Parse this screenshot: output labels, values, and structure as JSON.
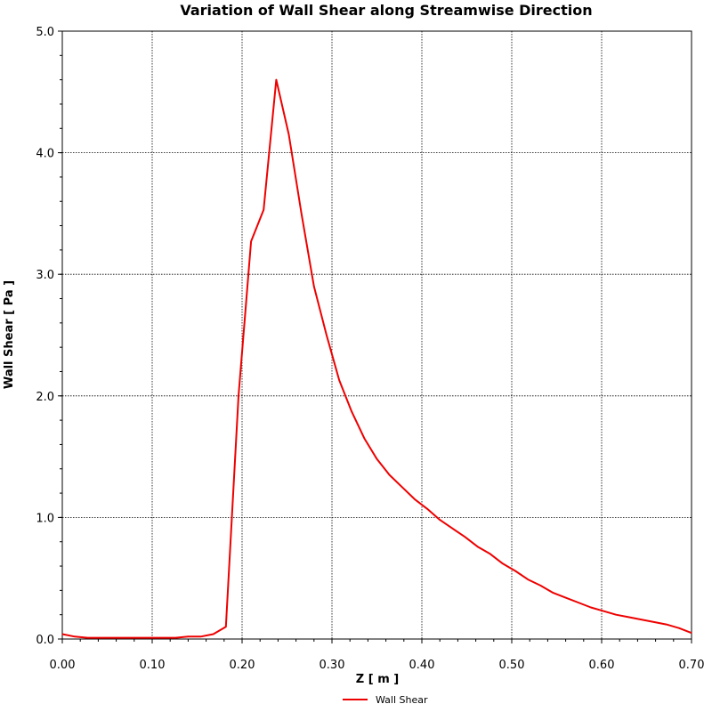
{
  "chart_data": {
    "type": "line",
    "title": "Variation of Wall Shear along Streamwise Direction",
    "xlabel": "Z [ m ]",
    "ylabel": "Wall Shear [ Pa ]",
    "xlim": [
      0,
      0.7
    ],
    "ylim": [
      0,
      5
    ],
    "x_ticks": [
      "0.00",
      "0.10",
      "0.20",
      "0.30",
      "0.40",
      "0.50",
      "0.60",
      "0.70"
    ],
    "y_ticks": [
      "0.0",
      "1.0",
      "2.0",
      "3.0",
      "4.0",
      "5.0"
    ],
    "grid": true,
    "legend_position": "bottom-center",
    "series": [
      {
        "name": "Wall Shear",
        "color": "#ee0000",
        "x": [
          0.0,
          0.014,
          0.028,
          0.042,
          0.056,
          0.07,
          0.084,
          0.098,
          0.112,
          0.126,
          0.14,
          0.154,
          0.168,
          0.182,
          0.196,
          0.21,
          0.224,
          0.238,
          0.252,
          0.266,
          0.28,
          0.294,
          0.308,
          0.322,
          0.336,
          0.35,
          0.364,
          0.378,
          0.392,
          0.406,
          0.42,
          0.434,
          0.448,
          0.462,
          0.476,
          0.49,
          0.504,
          0.518,
          0.532,
          0.546,
          0.56,
          0.574,
          0.588,
          0.602,
          0.616,
          0.63,
          0.644,
          0.658,
          0.672,
          0.686,
          0.7
        ],
        "y": [
          0.04,
          0.02,
          0.01,
          0.01,
          0.01,
          0.01,
          0.01,
          0.01,
          0.01,
          0.01,
          0.02,
          0.02,
          0.04,
          0.1,
          2.0,
          3.27,
          3.53,
          4.6,
          4.15,
          3.5,
          2.9,
          2.5,
          2.13,
          1.87,
          1.65,
          1.48,
          1.35,
          1.25,
          1.15,
          1.07,
          0.98,
          0.91,
          0.84,
          0.76,
          0.7,
          0.62,
          0.56,
          0.49,
          0.44,
          0.38,
          0.34,
          0.3,
          0.26,
          0.23,
          0.2,
          0.18,
          0.16,
          0.14,
          0.12,
          0.09,
          0.05
        ]
      }
    ]
  }
}
